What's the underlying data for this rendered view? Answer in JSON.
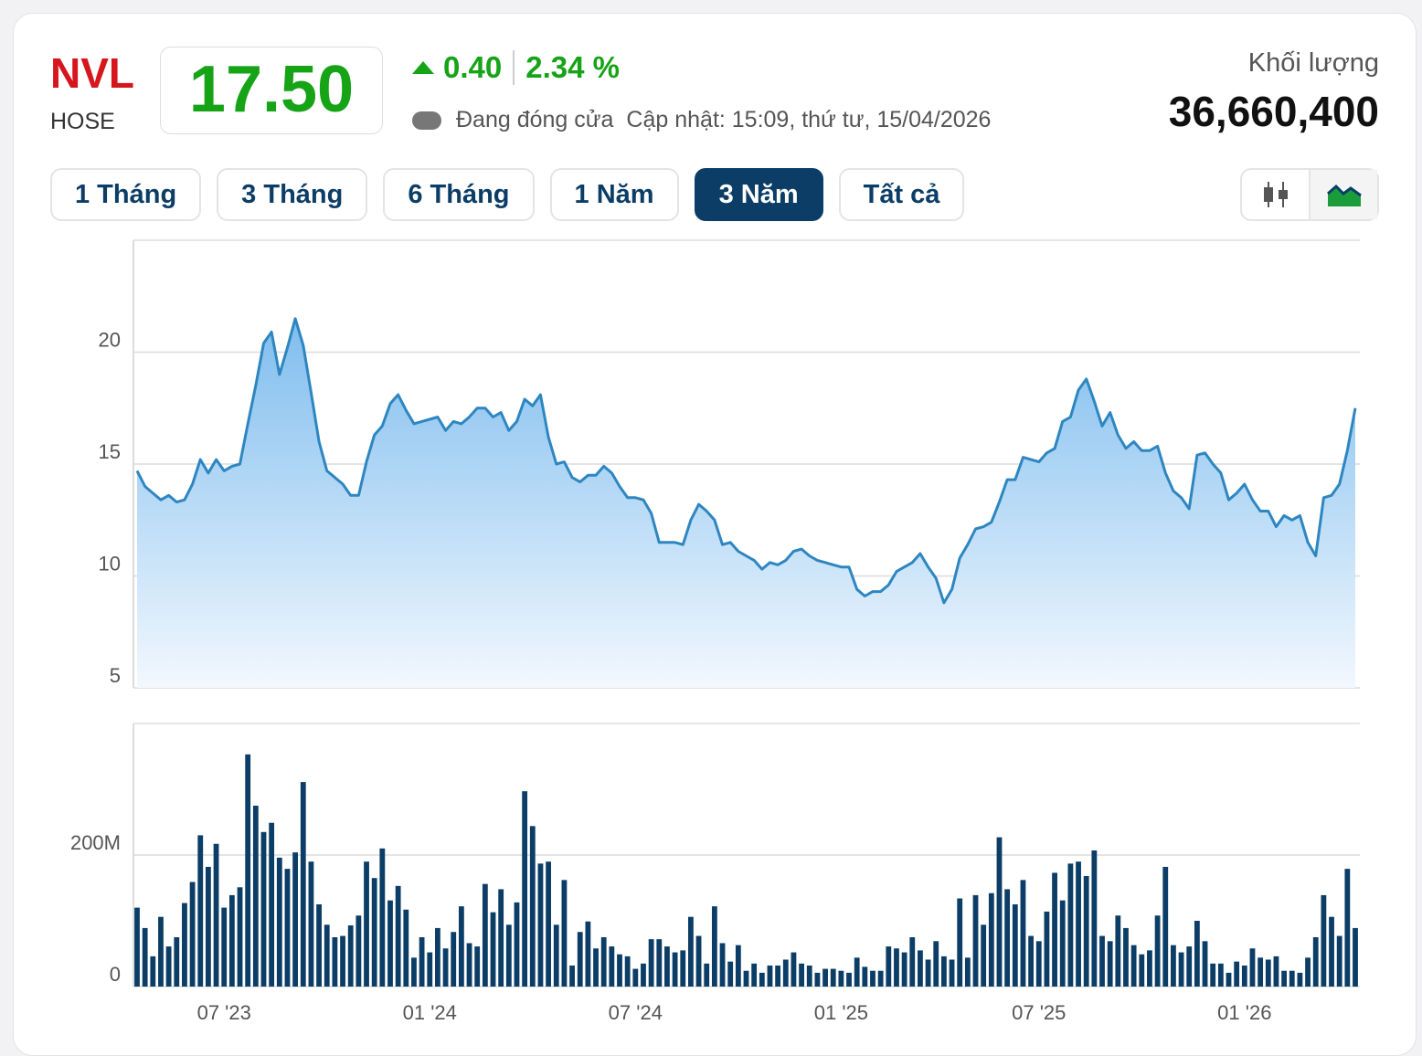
{
  "header": {
    "symbol": "NVL",
    "exchange": "HOSE",
    "price": "17.50",
    "change": "0.40",
    "change_percent": "2.34 %",
    "status": "Đang đóng cửa",
    "updated": "Cập nhật: 15:09, thứ tư, 15/04/2026",
    "volume_label": "Khối lượng",
    "volume": "36,660,400"
  },
  "ranges": [
    "1 Tháng",
    "3 Tháng",
    "6 Tháng",
    "1 Năm",
    "3 Năm",
    "Tất cả"
  ],
  "active_range": 4,
  "chart_data": [
    {
      "type": "area",
      "color": "#2e86c1",
      "ylim": [
        5,
        25
      ],
      "yticks": [
        5,
        10,
        15,
        20
      ],
      "grid": true,
      "values": [
        14.7,
        14.0,
        13.7,
        13.4,
        13.6,
        13.3,
        13.4,
        14.1,
        15.2,
        14.6,
        15.2,
        14.7,
        14.9,
        15.0,
        16.8,
        18.5,
        20.4,
        20.9,
        19.0,
        20.2,
        21.5,
        20.3,
        18.2,
        16.0,
        14.7,
        14.4,
        14.1,
        13.6,
        13.6,
        15.1,
        16.3,
        16.7,
        17.7,
        18.1,
        17.4,
        16.8,
        16.9,
        17.0,
        17.1,
        16.5,
        16.9,
        16.8,
        17.1,
        17.5,
        17.5,
        17.1,
        17.3,
        16.5,
        16.9,
        17.9,
        17.6,
        18.1,
        16.2,
        15.0,
        15.1,
        14.4,
        14.2,
        14.5,
        14.5,
        14.9,
        14.6,
        14.0,
        13.5,
        13.5,
        13.4,
        12.8,
        11.5,
        11.5,
        11.5,
        11.4,
        12.5,
        13.2,
        12.9,
        12.5,
        11.4,
        11.5,
        11.1,
        10.9,
        10.7,
        10.3,
        10.6,
        10.5,
        10.7,
        11.1,
        11.2,
        10.9,
        10.7,
        10.6,
        10.5,
        10.4,
        10.4,
        9.4,
        9.1,
        9.3,
        9.3,
        9.6,
        10.2,
        10.4,
        10.6,
        11.0,
        10.4,
        9.9,
        8.8,
        9.4,
        10.8,
        11.4,
        12.1,
        12.2,
        12.4,
        13.3,
        14.3,
        14.3,
        15.3,
        15.2,
        15.1,
        15.5,
        15.7,
        16.9,
        17.1,
        18.3,
        18.8,
        17.8,
        16.7,
        17.3,
        16.3,
        15.7,
        16.0,
        15.6,
        15.6,
        15.8,
        14.6,
        13.8,
        13.5,
        13.0,
        15.4,
        15.5,
        15.0,
        14.6,
        13.4,
        13.7,
        14.1,
        13.4,
        12.9,
        12.9,
        12.2,
        12.7,
        12.5,
        12.7,
        11.5,
        10.9,
        13.5,
        13.6,
        14.1,
        15.6,
        17.5
      ]
    },
    {
      "type": "bar",
      "color": "#0b3d66",
      "ylim": [
        0,
        400000000
      ],
      "yticks": [
        0,
        {
          "value": 200000000,
          "label": "200M"
        }
      ],
      "grid": true,
      "categories": [
        null,
        null,
        null,
        null,
        null,
        null,
        null,
        null,
        null,
        null,
        null,
        "07 '23",
        null,
        null,
        null,
        null,
        null,
        null,
        null,
        null,
        null,
        null,
        null,
        null,
        null,
        null,
        null,
        null,
        null,
        null,
        null,
        null,
        null,
        null,
        null,
        null,
        null,
        "01 '24",
        null,
        null,
        null,
        null,
        null,
        null,
        null,
        null,
        null,
        null,
        null,
        null,
        null,
        null,
        null,
        null,
        null,
        null,
        null,
        null,
        null,
        null,
        null,
        null,
        null,
        "07 '24",
        null,
        null,
        null,
        null,
        null,
        null,
        null,
        null,
        null,
        null,
        null,
        null,
        null,
        null,
        null,
        null,
        null,
        null,
        null,
        null,
        null,
        null,
        null,
        null,
        null,
        "01 '25",
        null,
        null,
        null,
        null,
        null,
        null,
        null,
        null,
        null,
        null,
        null,
        null,
        null,
        null,
        null,
        null,
        null,
        null,
        null,
        null,
        null,
        null,
        null,
        null,
        "07 '25",
        null,
        null,
        null,
        null,
        null,
        null,
        null,
        null,
        null,
        null,
        null,
        null,
        null,
        null,
        null,
        null,
        null,
        null,
        null,
        null,
        null,
        null,
        null,
        null,
        null,
        "01 '26",
        null,
        null,
        null,
        null,
        null,
        null,
        null,
        null,
        null,
        null,
        null,
        null,
        null,
        null
      ],
      "values": [
        120000000,
        89000000,
        46000000,
        106000000,
        61000000,
        75000000,
        127000000,
        159000000,
        230000000,
        182000000,
        217000000,
        120000000,
        139000000,
        151000000,
        353000000,
        275000000,
        235000000,
        249000000,
        196000000,
        179000000,
        204000000,
        311000000,
        190000000,
        125000000,
        94000000,
        75000000,
        77000000,
        93000000,
        108000000,
        190000000,
        165000000,
        210000000,
        131000000,
        153000000,
        117000000,
        44000000,
        75000000,
        52000000,
        89000000,
        58000000,
        83000000,
        122000000,
        66000000,
        61000000,
        156000000,
        113000000,
        148000000,
        94000000,
        128000000,
        297000000,
        244000000,
        187000000,
        190000000,
        94000000,
        162000000,
        32000000,
        83000000,
        99000000,
        58000000,
        75000000,
        61000000,
        49000000,
        46000000,
        27000000,
        35000000,
        72000000,
        72000000,
        61000000,
        52000000,
        55000000,
        106000000,
        77000000,
        35000000,
        122000000,
        66000000,
        38000000,
        63000000,
        24000000,
        35000000,
        21000000,
        32000000,
        32000000,
        41000000,
        52000000,
        35000000,
        32000000,
        21000000,
        27000000,
        27000000,
        24000000,
        21000000,
        44000000,
        30000000,
        24000000,
        24000000,
        61000000,
        58000000,
        52000000,
        75000000,
        55000000,
        41000000,
        69000000,
        46000000,
        41000000,
        134000000,
        44000000,
        139000000,
        94000000,
        142000000,
        227000000,
        148000000,
        125000000,
        162000000,
        77000000,
        69000000,
        114000000,
        173000000,
        131000000,
        187000000,
        190000000,
        168000000,
        207000000,
        77000000,
        69000000,
        108000000,
        89000000,
        63000000,
        49000000,
        55000000,
        108000000,
        182000000,
        63000000,
        52000000,
        61000000,
        100000000,
        69000000,
        35000000,
        35000000,
        21000000,
        38000000,
        32000000,
        58000000,
        44000000,
        41000000,
        46000000,
        24000000,
        24000000,
        21000000,
        44000000,
        75000000,
        139000000,
        106000000,
        77000000,
        179000000,
        89000000
      ]
    }
  ]
}
